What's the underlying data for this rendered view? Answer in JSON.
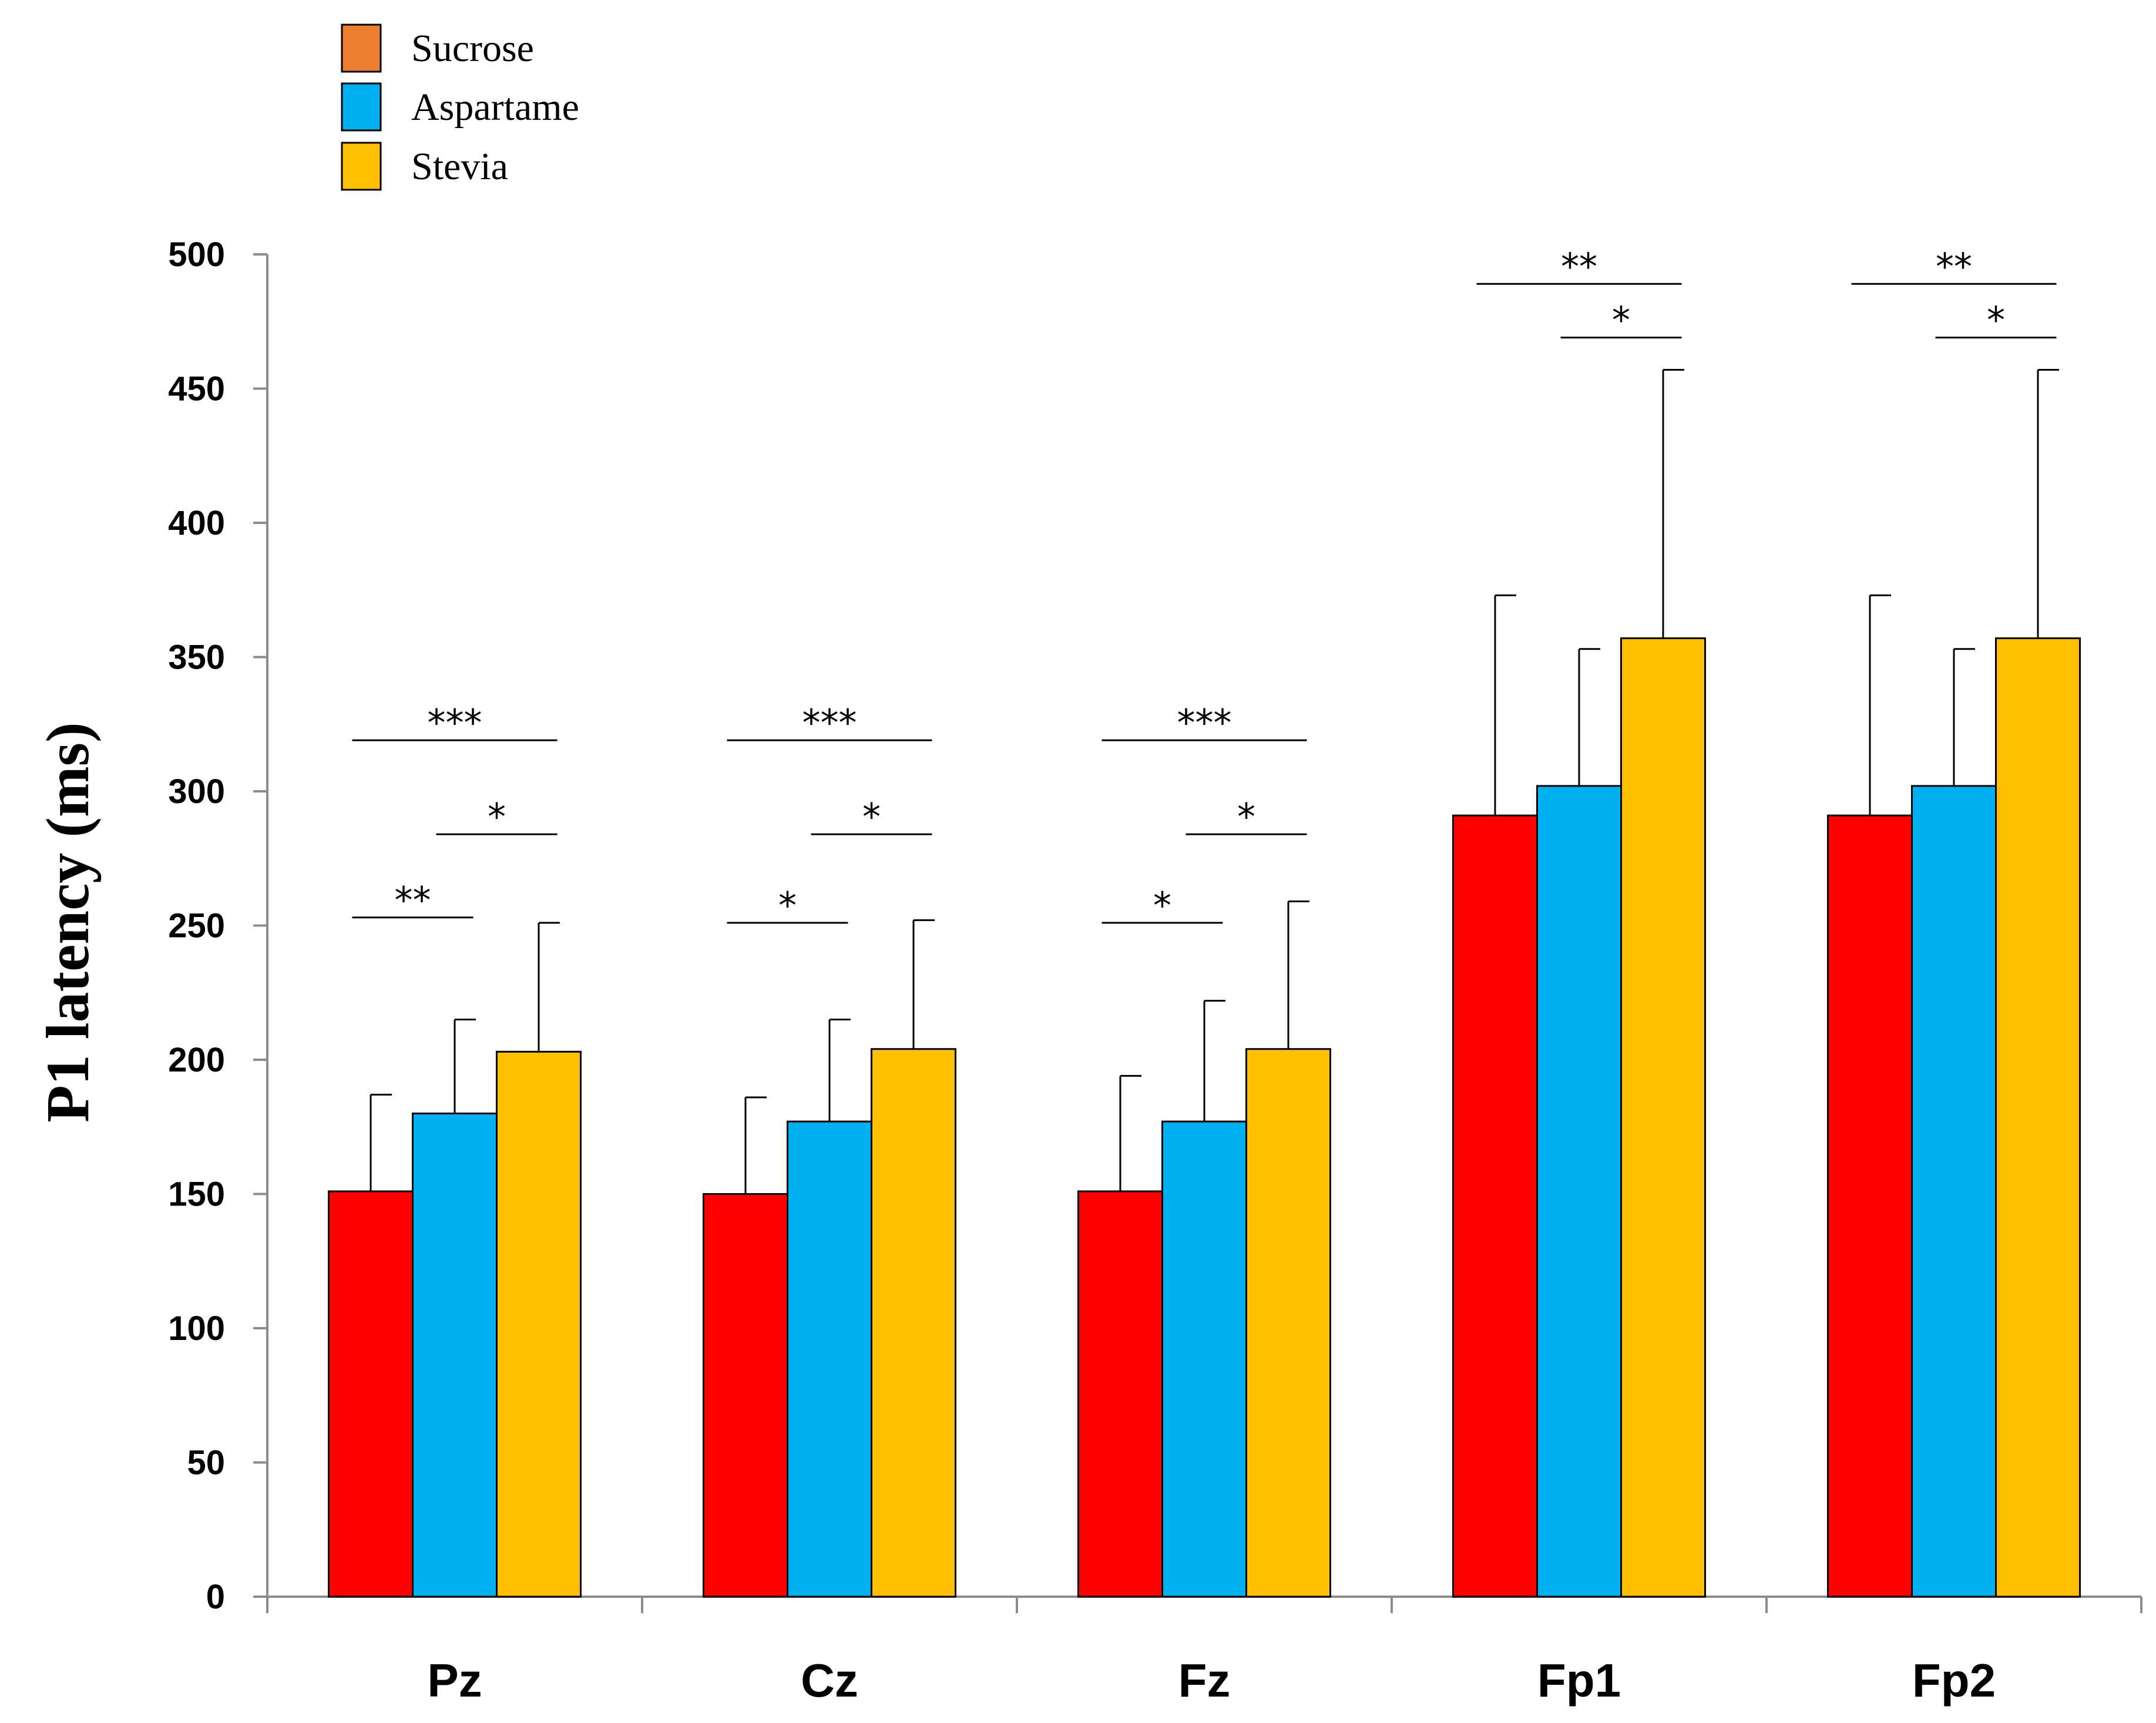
{
  "chart_data": {
    "type": "bar",
    "title": "",
    "xlabel": "",
    "ylabel": "P1 latency (ms)",
    "ylim": [
      0,
      500
    ],
    "yticks": [
      "0",
      "50",
      "100",
      "150",
      "200",
      "250",
      "300",
      "350",
      "400",
      "450",
      "500"
    ],
    "categories": [
      "Pz",
      "Cz",
      "Fz",
      "Fp1",
      "Fp2"
    ],
    "legend_position": "top-left",
    "series": [
      {
        "name": "Sucrose",
        "legend_color": "#ED7D31",
        "bar_color": "#FF0000",
        "values": [
          151,
          150,
          151,
          291,
          291
        ],
        "errors": [
          36,
          36,
          43,
          82,
          82
        ]
      },
      {
        "name": "Aspartame",
        "legend_color": "#00B0F0",
        "bar_color": "#00B0F0",
        "values": [
          180,
          177,
          177,
          302,
          302
        ],
        "errors": [
          35,
          38,
          45,
          51,
          51
        ]
      },
      {
        "name": "Stevia",
        "legend_color": "#FFC000",
        "bar_color": "#FFC000",
        "values": [
          203,
          204,
          204,
          357,
          357
        ],
        "errors": [
          48,
          48,
          55,
          100,
          100
        ]
      }
    ],
    "significance": [
      {
        "category": 0,
        "from": 0,
        "to": 2,
        "y": 319,
        "label": "***"
      },
      {
        "category": 0,
        "from": 1,
        "to": 2,
        "y": 284,
        "label": "*"
      },
      {
        "category": 0,
        "from": 0,
        "to": 1,
        "y": 253,
        "label": "**"
      },
      {
        "category": 1,
        "from": 0,
        "to": 2,
        "y": 319,
        "label": "***"
      },
      {
        "category": 1,
        "from": 1,
        "to": 2,
        "y": 284,
        "label": "*"
      },
      {
        "category": 1,
        "from": 0,
        "to": 1,
        "y": 251,
        "label": "*"
      },
      {
        "category": 2,
        "from": 0,
        "to": 2,
        "y": 319,
        "label": "***"
      },
      {
        "category": 2,
        "from": 1,
        "to": 2,
        "y": 284,
        "label": "*"
      },
      {
        "category": 2,
        "from": 0,
        "to": 1,
        "y": 251,
        "label": "*"
      },
      {
        "category": 3,
        "from": 0,
        "to": 2,
        "y": 489,
        "label": "**"
      },
      {
        "category": 3,
        "from": 1,
        "to": 2,
        "y": 469,
        "label": "*"
      },
      {
        "category": 4,
        "from": 0,
        "to": 2,
        "y": 489,
        "label": "**"
      },
      {
        "category": 4,
        "from": 1,
        "to": 2,
        "y": 469,
        "label": "*"
      }
    ]
  }
}
